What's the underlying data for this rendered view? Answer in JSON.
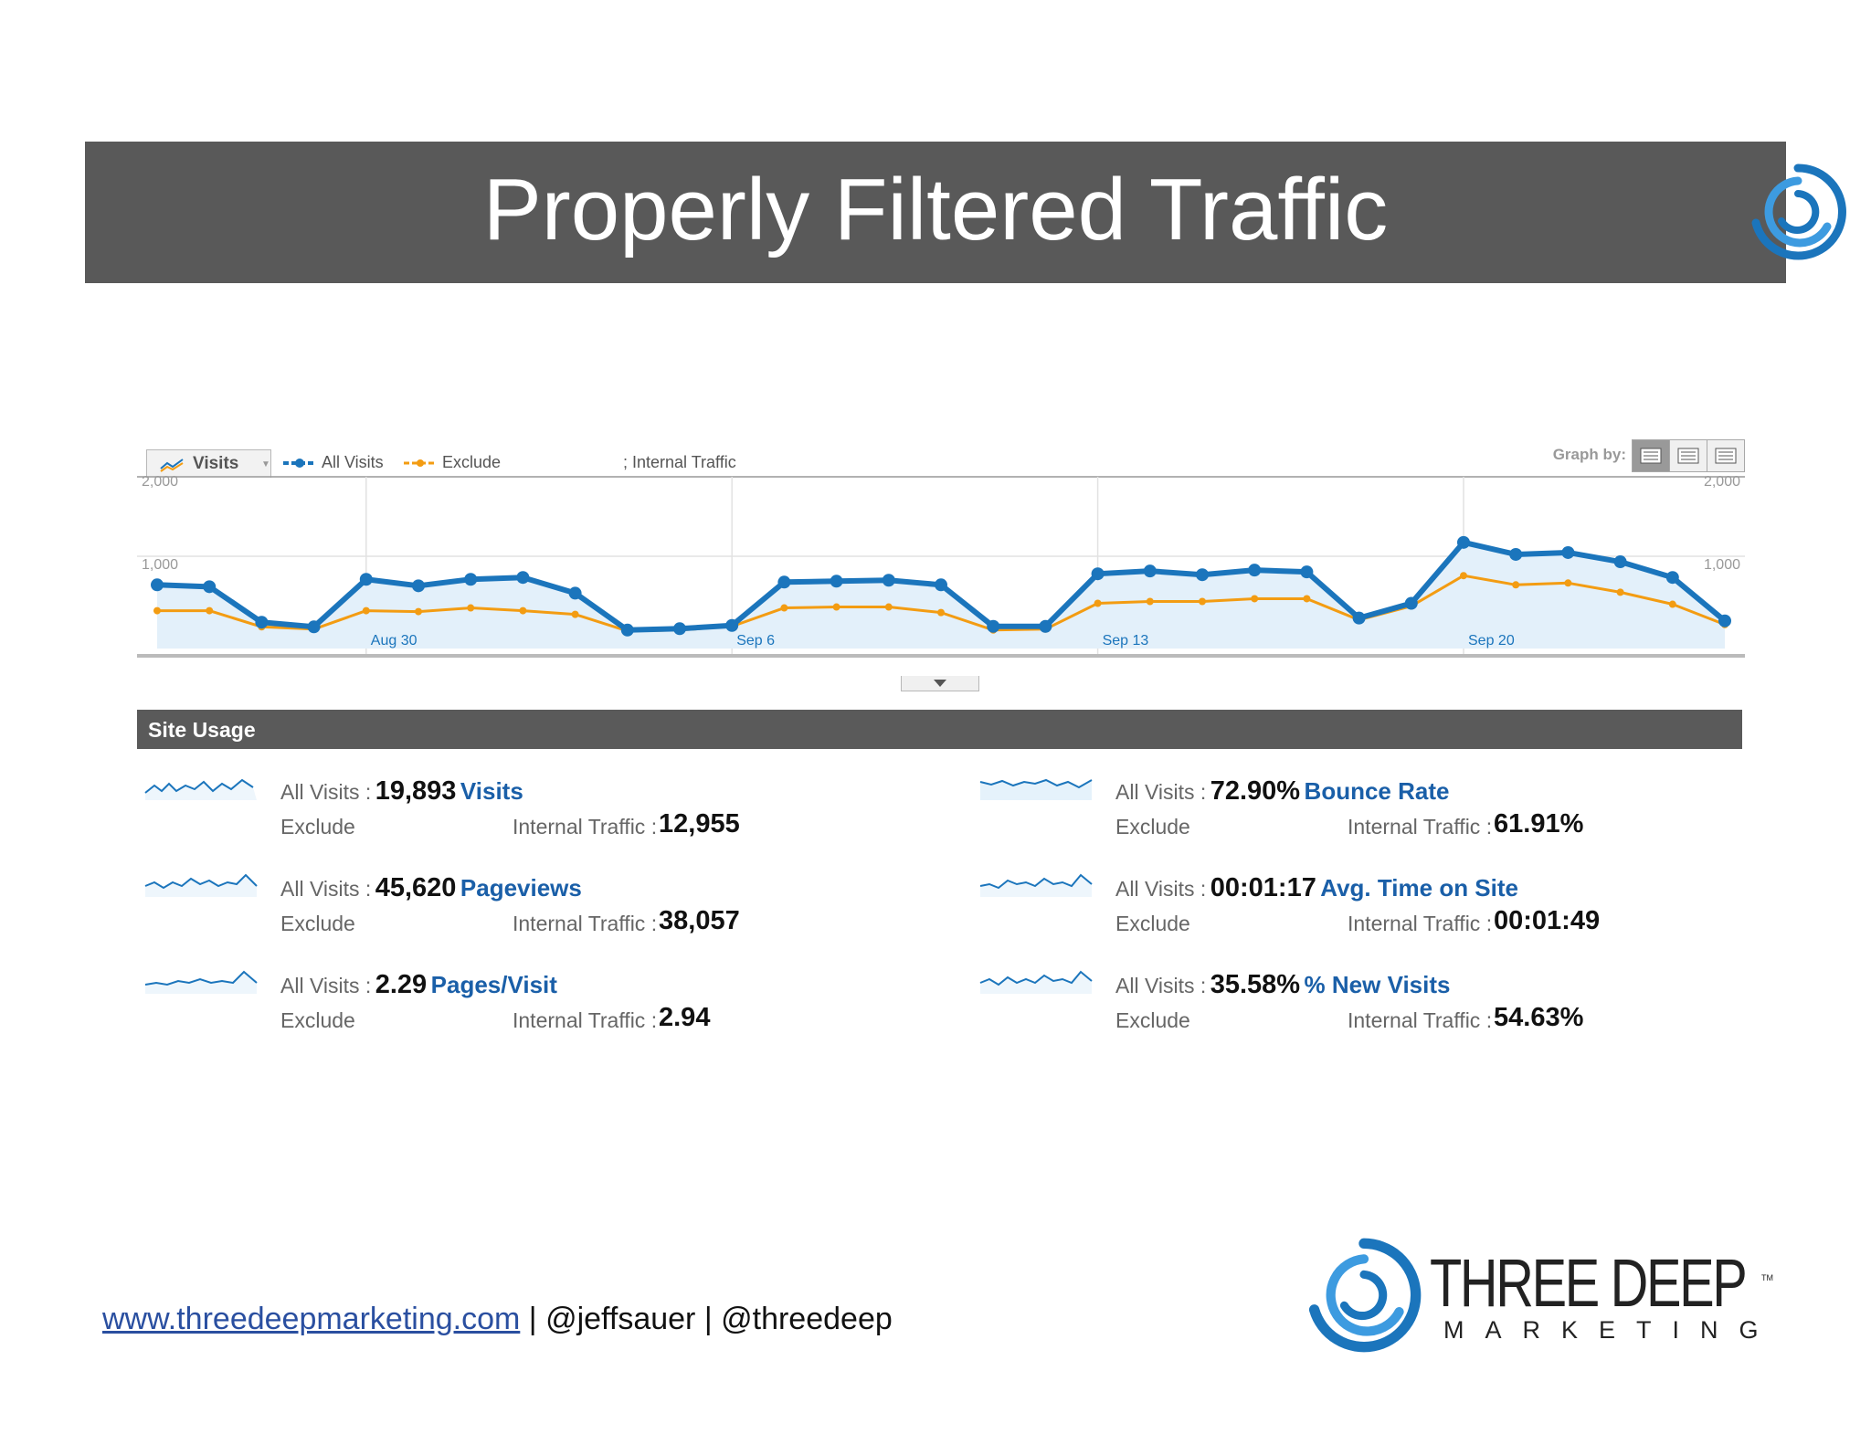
{
  "slide": {
    "title": "Properly Filtered Traffic",
    "colors": {
      "title_bar": "#595959",
      "accent_blue": "#1b75bc",
      "series_orange": "#f39c12"
    }
  },
  "chart_toolbar": {
    "metric_label": "Visits",
    "legend_all": "All Visits",
    "legend_exclude_part": "Exclude",
    "legend_internal_part": "; Internal Traffic",
    "graph_by_label": "Graph by:"
  },
  "chart_data": {
    "type": "line",
    "ylim": [
      0,
      2000
    ],
    "y_ticks": [
      "2,000",
      "1,000"
    ],
    "x_labels": [
      "Aug 30",
      "Sep 6",
      "Sep 13",
      "Sep 20"
    ],
    "x_label_positions": [
      4,
      11,
      18,
      25
    ],
    "series": [
      {
        "name": "All Visits",
        "color": "#1b75bc",
        "values": [
          690,
          670,
          285,
          235,
          750,
          680,
          750,
          770,
          600,
          200,
          215,
          250,
          720,
          730,
          740,
          690,
          240,
          240,
          810,
          840,
          800,
          850,
          830,
          330,
          490,
          1150,
          1020,
          1040,
          940,
          770,
          300
        ]
      },
      {
        "name": "Exclude Internal Traffic",
        "color": "#f39c12",
        "values": [
          410,
          410,
          235,
          210,
          410,
          400,
          440,
          410,
          370,
          190,
          200,
          240,
          440,
          450,
          450,
          390,
          200,
          210,
          490,
          510,
          510,
          540,
          540,
          310,
          460,
          790,
          690,
          710,
          610,
          480,
          260
        ]
      }
    ]
  },
  "site_usage": {
    "header": "Site Usage",
    "items": [
      {
        "all_label": "All Visits :",
        "value": "19,893",
        "metric": "Visits",
        "ex_label": "Exclude",
        "int_label": "Internal Traffic :",
        "value2": "12,955"
      },
      {
        "all_label": "All Visits :",
        "value": "72.90%",
        "metric": "Bounce Rate",
        "ex_label": "Exclude",
        "int_label": "Internal Traffic :",
        "value2": "61.91%"
      },
      {
        "all_label": "All Visits :",
        "value": "45,620",
        "metric": "Pageviews",
        "ex_label": "Exclude",
        "int_label": "Internal Traffic :",
        "value2": "38,057"
      },
      {
        "all_label": "All Visits :",
        "value": "00:01:17",
        "metric": "Avg. Time on Site",
        "ex_label": "Exclude",
        "int_label": "Internal Traffic :",
        "value2": "00:01:49"
      },
      {
        "all_label": "All Visits :",
        "value": "2.29",
        "metric": "Pages/Visit",
        "ex_label": "Exclude",
        "int_label": "Internal Traffic :",
        "value2": "2.94"
      },
      {
        "all_label": "All Visits :",
        "value": "35.58%",
        "metric": "% New Visits",
        "ex_label": "Exclude",
        "int_label": "Internal Traffic :",
        "value2": "54.63%"
      }
    ]
  },
  "footer": {
    "url": "www.threedeepmarketing.com",
    "sep": " | ",
    "handle1": "@jeffsauer",
    "handle2": "@threedeep",
    "brand_name": "THREE DEEP",
    "brand_sub": "MARKETING",
    "brand_tm": "TM"
  }
}
